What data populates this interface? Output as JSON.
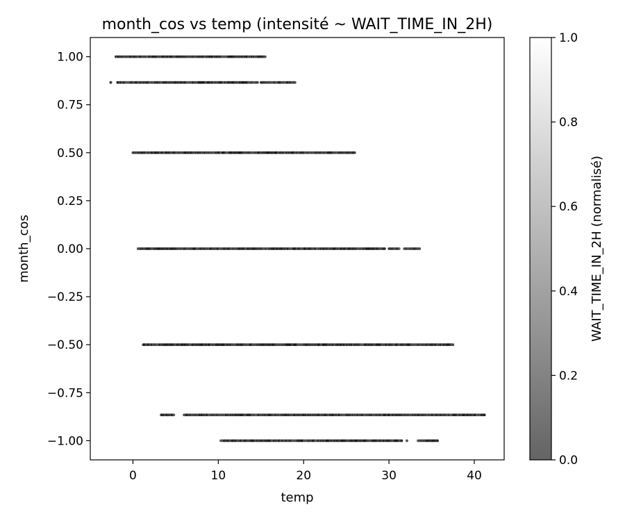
{
  "chart_data": {
    "type": "scatter",
    "title": "month_cos vs temp (intensité ~ WAIT_TIME_IN_2H)",
    "xlabel": "temp",
    "ylabel": "month_cos",
    "xlim": [
      -5,
      43.5
    ],
    "ylim": [
      -1.1,
      1.1
    ],
    "x_ticks": [
      0,
      10,
      20,
      30,
      40
    ],
    "x_tick_labels": [
      "0",
      "10",
      "20",
      "30",
      "40"
    ],
    "y_ticks": [
      1.0,
      0.75,
      0.5,
      0.25,
      0.0,
      -0.25,
      -0.5,
      -0.75,
      -1.0
    ],
    "y_tick_labels": [
      "1.00",
      "0.75",
      "0.50",
      "0.25",
      "0.00",
      "−0.25",
      "−0.50",
      "−0.75",
      "−1.00"
    ],
    "grid": false,
    "rows": [
      {
        "y": 1.0,
        "temp_ranges": [
          [
            -2.0,
            15.5
          ]
        ]
      },
      {
        "y": 0.866,
        "temp_ranges": [
          [
            -2.6,
            -2.6
          ],
          [
            -1.8,
            14.6
          ],
          [
            15.0,
            19.0
          ]
        ]
      },
      {
        "y": 0.5,
        "temp_ranges": [
          [
            0.0,
            26.0
          ]
        ]
      },
      {
        "y": 0.0,
        "temp_ranges": [
          [
            0.6,
            29.5
          ],
          [
            30.0,
            31.2
          ],
          [
            31.8,
            33.6
          ]
        ]
      },
      {
        "y": -0.5,
        "temp_ranges": [
          [
            1.2,
            37.5
          ]
        ]
      },
      {
        "y": -0.866,
        "temp_ranges": [
          [
            3.3,
            4.8
          ],
          [
            6.0,
            41.2
          ]
        ]
      },
      {
        "y": -1.0,
        "temp_ranges": [
          [
            10.3,
            31.5
          ],
          [
            32.1,
            32.1
          ],
          [
            33.4,
            35.7
          ]
        ]
      }
    ],
    "colorbar": {
      "label": "WAIT_TIME_IN_2H (normalisé)",
      "range": [
        0.0,
        1.0
      ],
      "ticks": [
        "0.0",
        "0.2",
        "0.4",
        "0.6",
        "0.8",
        "1.0"
      ],
      "colormap": "gray"
    },
    "point_color": "#1a1a1a"
  }
}
